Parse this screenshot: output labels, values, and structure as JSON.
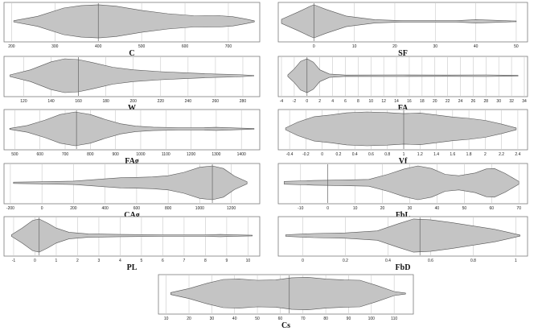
{
  "chart_data": [
    {
      "type": "violin",
      "xlabel": "C",
      "ticks": [
        200,
        300,
        400,
        500,
        600,
        700
      ],
      "tick_labels": [
        "200",
        "300",
        "400",
        "500",
        "600",
        "700"
      ],
      "xlim": [
        190,
        765
      ],
      "median": 400,
      "density": [
        [
          205,
          0.04
        ],
        [
          260,
          0.3
        ],
        [
          320,
          0.8
        ],
        [
          360,
          0.95
        ],
        [
          400,
          1.0
        ],
        [
          440,
          0.92
        ],
        [
          500,
          0.66
        ],
        [
          560,
          0.46
        ],
        [
          620,
          0.34
        ],
        [
          650,
          0.33
        ],
        [
          680,
          0.34
        ],
        [
          710,
          0.28
        ],
        [
          740,
          0.14
        ],
        [
          760,
          0.03
        ]
      ]
    },
    {
      "type": "violin",
      "xlabel": "SF",
      "ticks": [
        0,
        10,
        20,
        30,
        40,
        50
      ],
      "tick_labels": [
        "0",
        "10",
        "20",
        "30",
        "40",
        "50"
      ],
      "xlim": [
        -8,
        52
      ],
      "median": 0,
      "density": [
        [
          -8,
          0.12
        ],
        [
          -4,
          0.55
        ],
        [
          -1,
          0.9
        ],
        [
          0,
          1.0
        ],
        [
          3,
          0.72
        ],
        [
          8,
          0.32
        ],
        [
          15,
          0.1
        ],
        [
          22,
          0.04
        ],
        [
          35,
          0.04
        ],
        [
          40,
          0.1
        ],
        [
          44,
          0.07
        ],
        [
          50,
          0.02
        ]
      ]
    },
    {
      "type": "violin",
      "xlabel": "W",
      "ticks": [
        120,
        140,
        160,
        180,
        200,
        220,
        240,
        260,
        280
      ],
      "tick_labels": [
        "120",
        "140",
        "160",
        "180",
        "200",
        "220",
        "240",
        "260",
        "280"
      ],
      "xlim": [
        108,
        290
      ],
      "median": 160,
      "density": [
        [
          110,
          0.05
        ],
        [
          125,
          0.35
        ],
        [
          140,
          0.82
        ],
        [
          150,
          1.0
        ],
        [
          160,
          0.95
        ],
        [
          170,
          0.78
        ],
        [
          185,
          0.5
        ],
        [
          200,
          0.35
        ],
        [
          220,
          0.24
        ],
        [
          240,
          0.16
        ],
        [
          260,
          0.1
        ],
        [
          275,
          0.07
        ],
        [
          288,
          0.02
        ]
      ]
    },
    {
      "type": "violin",
      "xlabel": "FA",
      "ticks": [
        -4,
        -2,
        0,
        2,
        4,
        6,
        8,
        10,
        12,
        14,
        16,
        18,
        20,
        22,
        24,
        26,
        28,
        30,
        32,
        34
      ],
      "tick_labels": [
        "-4",
        "-2",
        "0",
        "2",
        "4",
        "6",
        "8",
        "10",
        "12",
        "14",
        "16",
        "18",
        "20",
        "22",
        "24",
        "26",
        "28",
        "30",
        "32",
        "34"
      ],
      "xlim": [
        -4,
        34
      ],
      "median": 0,
      "density": [
        [
          -3,
          0.05
        ],
        [
          -2,
          0.4
        ],
        [
          -1,
          0.85
        ],
        [
          0,
          1.0
        ],
        [
          1,
          0.8
        ],
        [
          2,
          0.35
        ],
        [
          3.5,
          0.1
        ],
        [
          6,
          0.04
        ],
        [
          15,
          0.05
        ],
        [
          22,
          0.04
        ],
        [
          28,
          0.05
        ],
        [
          33,
          0.02
        ]
      ]
    },
    {
      "type": "violin",
      "xlabel": "FAg",
      "ticks": [
        500,
        600,
        700,
        800,
        900,
        1000,
        1100,
        1200,
        1300,
        1400
      ],
      "tick_labels": [
        "500",
        "600",
        "700",
        "800",
        "900",
        "1000",
        "1100",
        "1200",
        "1300",
        "1400"
      ],
      "xlim": [
        470,
        1460
      ],
      "median": 745,
      "density": [
        [
          480,
          0.03
        ],
        [
          550,
          0.2
        ],
        [
          620,
          0.52
        ],
        [
          680,
          0.85
        ],
        [
          740,
          1.0
        ],
        [
          800,
          0.85
        ],
        [
          860,
          0.55
        ],
        [
          920,
          0.3
        ],
        [
          980,
          0.16
        ],
        [
          1050,
          0.1
        ],
        [
          1150,
          0.07
        ],
        [
          1250,
          0.07
        ],
        [
          1300,
          0.09
        ],
        [
          1380,
          0.05
        ],
        [
          1450,
          0.02
        ]
      ]
    },
    {
      "type": "violin",
      "xlabel": "Vf",
      "ticks": [
        -0.4,
        -0.2,
        0,
        0.2,
        0.4,
        0.6,
        0.8,
        1,
        1.2,
        1.4,
        1.6,
        1.8,
        2,
        2.2,
        2.4
      ],
      "tick_labels": [
        "-0.4",
        "-0.2",
        "0",
        "0.2",
        "0.4",
        "0.6",
        "0.8",
        "1",
        "1.2",
        "1.4",
        "1.6",
        "1.8",
        "2",
        "2.2",
        "2.4"
      ],
      "xlim": [
        -0.5,
        2.48
      ],
      "median": 1.0,
      "density": [
        [
          -0.45,
          0.05
        ],
        [
          -0.3,
          0.4
        ],
        [
          -0.1,
          0.72
        ],
        [
          0.1,
          0.82
        ],
        [
          0.3,
          0.95
        ],
        [
          0.55,
          1.0
        ],
        [
          0.8,
          0.96
        ],
        [
          1.0,
          0.9
        ],
        [
          1.2,
          0.94
        ],
        [
          1.4,
          0.82
        ],
        [
          1.6,
          0.7
        ],
        [
          1.8,
          0.62
        ],
        [
          2.0,
          0.5
        ],
        [
          2.2,
          0.28
        ],
        [
          2.38,
          0.05
        ]
      ]
    },
    {
      "type": "violin",
      "xlabel": "CAg",
      "ticks": [
        -200,
        0,
        200,
        400,
        600,
        800,
        1000,
        1200
      ],
      "tick_labels": [
        "-200",
        "0",
        "200",
        "400",
        "600",
        "800",
        "1000",
        "1200"
      ],
      "xlim": [
        -220,
        1360
      ],
      "median": 1080,
      "density": [
        [
          -180,
          0.04
        ],
        [
          0,
          0.06
        ],
        [
          200,
          0.1
        ],
        [
          350,
          0.2
        ],
        [
          500,
          0.3
        ],
        [
          600,
          0.32
        ],
        [
          700,
          0.35
        ],
        [
          800,
          0.42
        ],
        [
          900,
          0.62
        ],
        [
          1000,
          0.92
        ],
        [
          1080,
          1.0
        ],
        [
          1150,
          0.85
        ],
        [
          1220,
          0.4
        ],
        [
          1300,
          0.06
        ]
      ]
    },
    {
      "type": "violin",
      "xlabel": "FbL",
      "ticks": [
        -10,
        0,
        10,
        20,
        30,
        40,
        50,
        60,
        70
      ],
      "tick_labels": [
        "-10",
        "0",
        "10",
        "20",
        "30",
        "40",
        "50",
        "60",
        "70"
      ],
      "xlim": [
        -17,
        72
      ],
      "median": 0,
      "density": [
        [
          -16,
          0.08
        ],
        [
          -5,
          0.14
        ],
        [
          5,
          0.16
        ],
        [
          15,
          0.2
        ],
        [
          22,
          0.5
        ],
        [
          28,
          0.82
        ],
        [
          33,
          1.0
        ],
        [
          38,
          0.85
        ],
        [
          43,
          0.5
        ],
        [
          48,
          0.42
        ],
        [
          54,
          0.58
        ],
        [
          58,
          0.82
        ],
        [
          61,
          0.85
        ],
        [
          65,
          0.55
        ],
        [
          70,
          0.08
        ]
      ]
    },
    {
      "type": "violin",
      "xlabel": "PL",
      "ticks": [
        -1,
        0,
        1,
        2,
        3,
        4,
        5,
        6,
        7,
        8,
        9,
        10
      ],
      "tick_labels": [
        "-1",
        "0",
        "1",
        "2",
        "3",
        "4",
        "5",
        "6",
        "7",
        "8",
        "9",
        "10"
      ],
      "xlim": [
        -1.3,
        10.4
      ],
      "median": 0.2,
      "density": [
        [
          -1.1,
          0.05
        ],
        [
          -0.6,
          0.45
        ],
        [
          -0.1,
          0.92
        ],
        [
          0.2,
          1.0
        ],
        [
          0.6,
          0.75
        ],
        [
          1.0,
          0.45
        ],
        [
          1.6,
          0.2
        ],
        [
          2.5,
          0.1
        ],
        [
          4,
          0.07
        ],
        [
          6,
          0.05
        ],
        [
          8,
          0.05
        ],
        [
          8.7,
          0.07
        ],
        [
          9.5,
          0.04
        ],
        [
          10.2,
          0.02
        ]
      ]
    },
    {
      "type": "violin",
      "xlabel": "FbD",
      "ticks": [
        0,
        0.2,
        0.4,
        0.6,
        0.8,
        1
      ],
      "tick_labels": [
        "0",
        "0.2",
        "0.4",
        "0.6",
        "0.8",
        "1"
      ],
      "xlim": [
        -0.1,
        1.04
      ],
      "median": 0.55,
      "density": [
        [
          -0.08,
          0.05
        ],
        [
          0.05,
          0.12
        ],
        [
          0.2,
          0.16
        ],
        [
          0.35,
          0.28
        ],
        [
          0.45,
          0.72
        ],
        [
          0.52,
          1.0
        ],
        [
          0.6,
          0.95
        ],
        [
          0.7,
          0.78
        ],
        [
          0.8,
          0.58
        ],
        [
          0.9,
          0.38
        ],
        [
          0.97,
          0.18
        ],
        [
          1.02,
          0.03
        ]
      ]
    },
    {
      "type": "violin",
      "xlabel": "Cs",
      "ticks": [
        10,
        20,
        30,
        40,
        50,
        60,
        70,
        80,
        90,
        100,
        110
      ],
      "tick_labels": [
        "10",
        "20",
        "30",
        "40",
        "50",
        "60",
        "70",
        "80",
        "90",
        "100",
        "110"
      ],
      "xlim": [
        8,
        117
      ],
      "median": 64,
      "density": [
        [
          12,
          0.06
        ],
        [
          20,
          0.3
        ],
        [
          28,
          0.62
        ],
        [
          35,
          0.85
        ],
        [
          42,
          0.88
        ],
        [
          50,
          0.8
        ],
        [
          58,
          0.82
        ],
        [
          65,
          0.95
        ],
        [
          72,
          0.98
        ],
        [
          80,
          0.88
        ],
        [
          88,
          0.82
        ],
        [
          95,
          0.8
        ],
        [
          102,
          0.5
        ],
        [
          110,
          0.12
        ],
        [
          115,
          0.03
        ]
      ]
    }
  ]
}
